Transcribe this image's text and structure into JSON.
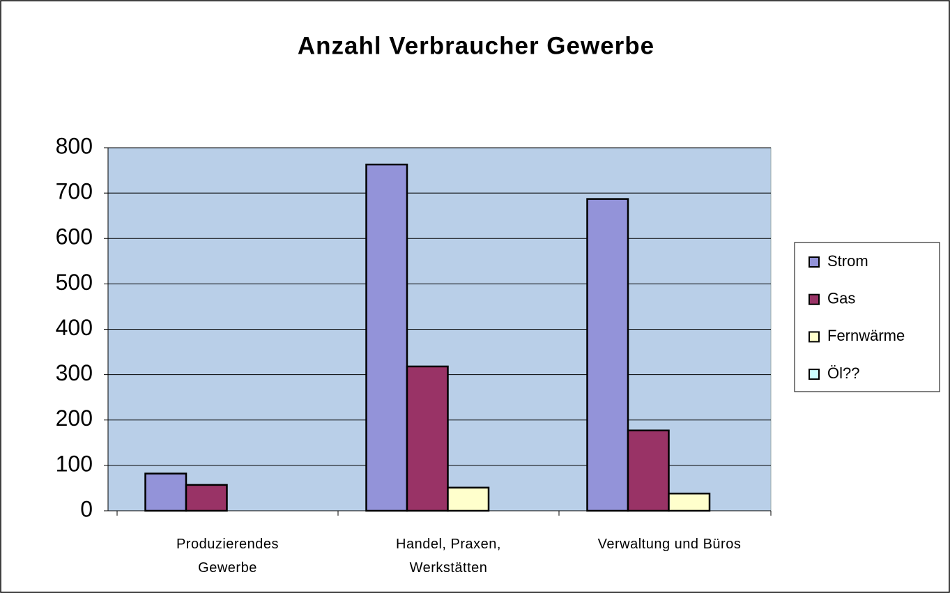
{
  "chart_data": {
    "type": "bar",
    "title": "Anzahl Verbraucher Gewerbe",
    "categories": [
      "Produzierendes\nGewerbe",
      "Handel, Praxen,\nWerkstätten",
      "Verwaltung und Büros"
    ],
    "series": [
      {
        "name": "Strom",
        "color": "#9393d9",
        "values": [
          82,
          763,
          687
        ]
      },
      {
        "name": "Gas",
        "color": "#993366",
        "values": [
          57,
          318,
          177
        ]
      },
      {
        "name": "Fernwärme",
        "color": "#ffffcc",
        "values": [
          null,
          51,
          38
        ]
      },
      {
        "name": "Öl??",
        "color": "#ccffff",
        "values": [
          null,
          null,
          null
        ]
      }
    ],
    "ylim": [
      0,
      800
    ],
    "yticks": [
      0,
      100,
      200,
      300,
      400,
      500,
      600,
      700,
      800
    ],
    "grid": true,
    "legend": "right"
  }
}
